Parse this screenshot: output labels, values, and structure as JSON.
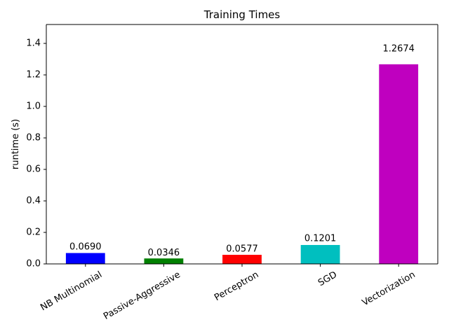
{
  "chart_data": {
    "type": "bar",
    "title": "Training Times",
    "y_label": "runtime (s)",
    "categories": [
      "NB Multinomial",
      "Passive-Aggressive",
      "Perceptron",
      "SGD",
      "Vectorization"
    ],
    "values": [
      0.069,
      0.0346,
      0.0577,
      0.1201,
      1.2674
    ],
    "value_labels": [
      "0.0690",
      "0.0346",
      "0.0577",
      "0.1201",
      "1.2674"
    ],
    "colors": [
      "#0000ff",
      "#008000",
      "#ff0000",
      "#00bfbf",
      "#bf00bf"
    ],
    "ylim": [
      0,
      1.52
    ],
    "yticks": [
      {
        "value": 0,
        "label": "0.0"
      },
      0.2,
      0.4,
      0.6,
      0.8,
      {
        "value": 1,
        "label": "1.0"
      },
      1.2,
      1.4
    ],
    "grid": false
  }
}
